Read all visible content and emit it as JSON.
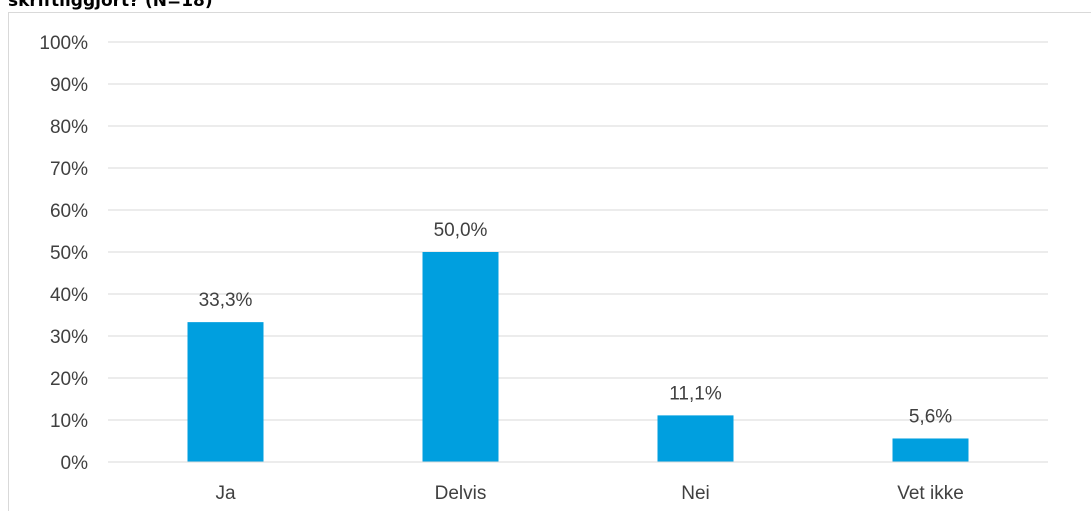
{
  "title_fragment": "skriftliggjort? (N=18)",
  "chart_data": {
    "type": "bar",
    "title": "skriftliggjort? (N=18)",
    "categories": [
      "Ja",
      "Delvis",
      "Nei",
      "Vet ikke"
    ],
    "values": [
      33.3,
      50.0,
      11.1,
      5.6
    ],
    "data_labels": [
      "33,3%",
      "50,0%",
      "11,1%",
      "5,6%"
    ],
    "ylim": [
      0,
      100
    ],
    "y_ticks": [
      0,
      10,
      20,
      30,
      40,
      50,
      60,
      70,
      80,
      90,
      100
    ],
    "y_tick_labels": [
      "0%",
      "10%",
      "20%",
      "30%",
      "40%",
      "50%",
      "60%",
      "70%",
      "80%",
      "90%",
      "100%"
    ],
    "xlabel": "",
    "ylabel": "",
    "grid": true,
    "bar_color": "#009fdf",
    "grid_color": "#d9d9d9",
    "text_color": "#404040"
  }
}
